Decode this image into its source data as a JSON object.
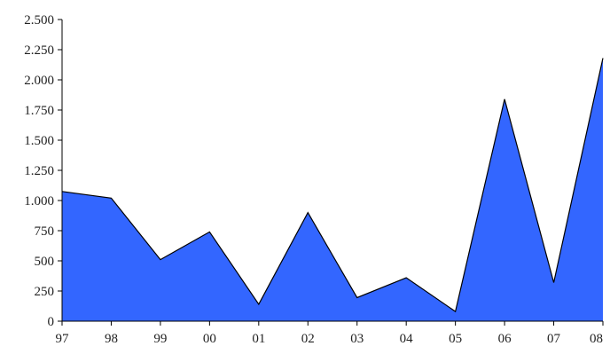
{
  "chart_data": {
    "type": "area",
    "title": "",
    "xlabel": "",
    "ylabel": "",
    "categories": [
      "97",
      "98",
      "99",
      "00",
      "01",
      "02",
      "03",
      "04",
      "05",
      "06",
      "07",
      "08"
    ],
    "values": [
      1075,
      1020,
      510,
      740,
      140,
      900,
      195,
      360,
      80,
      1840,
      320,
      2180
    ],
    "ylim": [
      0,
      2500
    ],
    "yticks": [
      0,
      250,
      500,
      750,
      1000,
      1250,
      1500,
      1750,
      2000,
      2250,
      2500
    ],
    "ytick_labels": [
      "0",
      "250",
      "500",
      "750",
      "1.000",
      "1.250",
      "1.500",
      "1.750",
      "2.000",
      "2.250",
      "2.500"
    ],
    "grid": false,
    "legend": "none",
    "fill_color": "#3366ff",
    "line_color": "#000000"
  }
}
